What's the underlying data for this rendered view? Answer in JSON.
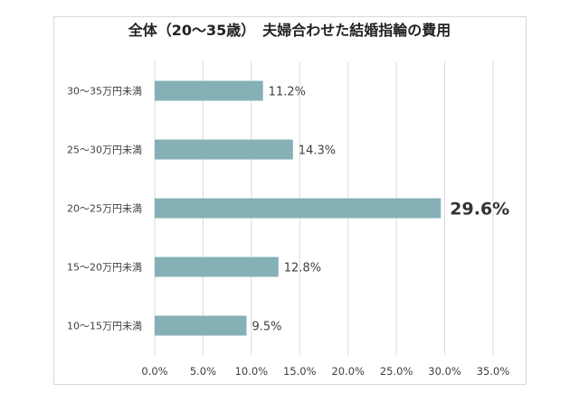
{
  "chart_data": {
    "type": "bar",
    "orientation": "horizontal",
    "title": "全体（20～35歳）　夫婦合わせた結婚指輪の費用",
    "categories": [
      "30～35万円未満",
      "25～30万円未満",
      "20～25万円未満",
      "15～20万円未満",
      "10～15万円未満"
    ],
    "values": [
      11.2,
      14.3,
      29.6,
      12.8,
      9.5
    ],
    "data_labels": [
      "11.2%",
      "14.3%",
      "29.6%",
      "12.8%",
      "9.5%"
    ],
    "highlight_index": 2,
    "xlim": [
      0,
      35
    ],
    "xticks": [
      0,
      5,
      10,
      15,
      20,
      25,
      30,
      35
    ],
    "xtick_labels": [
      "0.0%",
      "5.0%",
      "10.0%",
      "15.0%",
      "20.0%",
      "25.0%",
      "30.0%",
      "35.0%"
    ],
    "xlabel": "",
    "ylabel": "",
    "grid": "vertical",
    "legend": "none",
    "bar_color": "#84b0b6",
    "grid_color": "#d9d9d9"
  }
}
